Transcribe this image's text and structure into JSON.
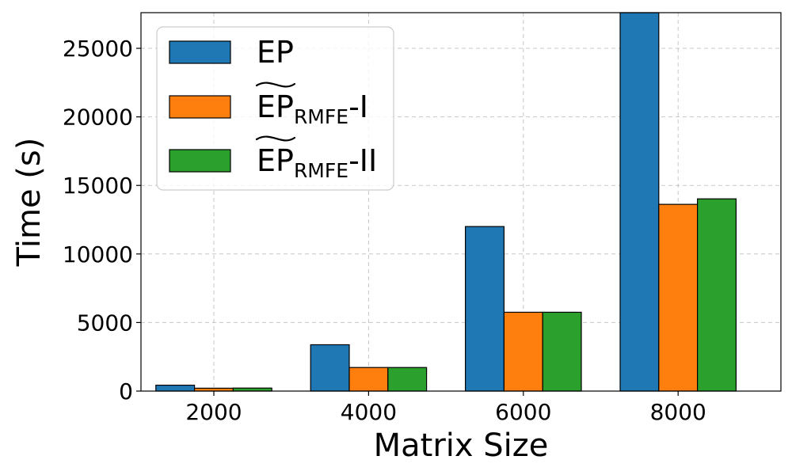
{
  "chart_data": {
    "type": "bar",
    "xlabel": "Matrix Size",
    "ylabel": "Time (s)",
    "categories": [
      "2000",
      "4000",
      "6000",
      "8000"
    ],
    "ylim": [
      0,
      27600
    ],
    "yticks": [
      0,
      5000,
      10000,
      15000,
      20000,
      25000
    ],
    "grid": true,
    "legend_position": "top-left",
    "series": [
      {
        "name": "EP",
        "legend_main": "EP",
        "legend_sub": "",
        "legend_suffix": "",
        "legend_tilde": false,
        "color": "#1f77b4",
        "values": [
          430,
          3380,
          12000,
          27600
        ]
      },
      {
        "name": "EP̃RMFE-I",
        "legend_main": "EP",
        "legend_sub": "RMFE",
        "legend_suffix": "-I",
        "legend_tilde": true,
        "color": "#ff7f0e",
        "values": [
          210,
          1720,
          5750,
          13620
        ]
      },
      {
        "name": "EP̃RMFE-II",
        "legend_main": "EP",
        "legend_sub": "RMFE",
        "legend_suffix": "-II",
        "legend_tilde": true,
        "color": "#2ca02c",
        "values": [
          220,
          1720,
          5750,
          14020
        ]
      }
    ]
  }
}
